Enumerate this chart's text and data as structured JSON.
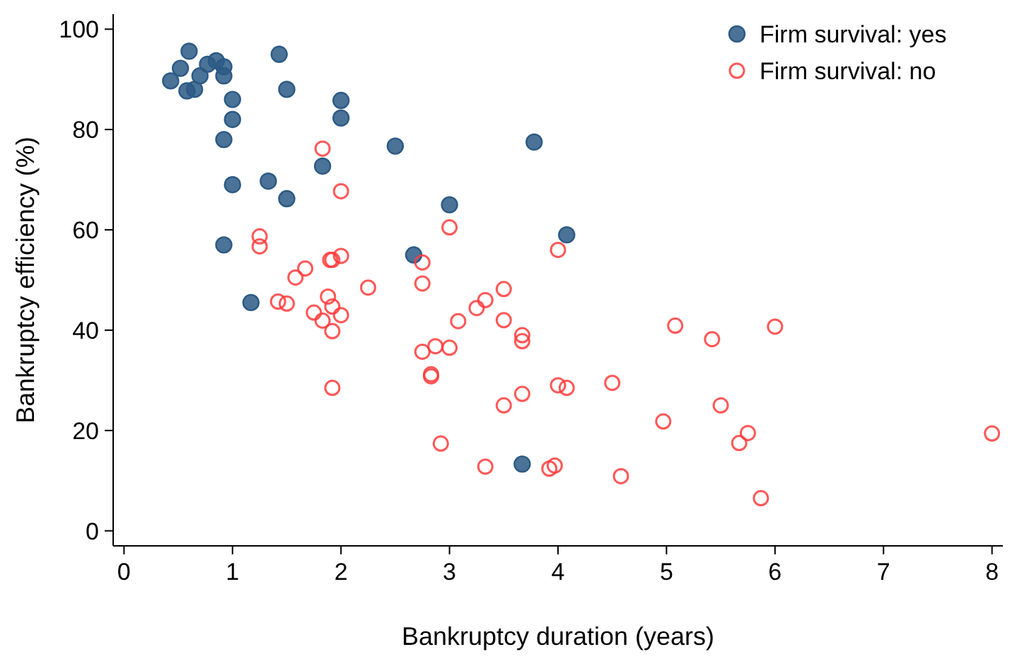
{
  "chart_data": {
    "type": "scatter",
    "xlabel": "Bankruptcy duration (years)",
    "ylabel": "Bankruptcy efficiency (%)",
    "xlim": [
      -0.1,
      8.1
    ],
    "ylim": [
      -3,
      103
    ],
    "xticks": [
      0,
      1,
      2,
      3,
      4,
      5,
      6,
      7,
      8
    ],
    "yticks": [
      0,
      20,
      40,
      60,
      80,
      100
    ],
    "grid": false,
    "legend": "top right",
    "series": [
      {
        "name": "Firm survival: yes",
        "color": "#2c5a85",
        "marker": "circle",
        "x": [
          0.43,
          0.52,
          0.58,
          0.6,
          0.65,
          0.7,
          0.77,
          0.85,
          0.92,
          0.92,
          0.92,
          0.92,
          1,
          1,
          1,
          1.17,
          1.33,
          1.43,
          1.5,
          1.5,
          1.83,
          2,
          2,
          2.5,
          2.67,
          3,
          3.67,
          3.78,
          4.08
        ],
        "values": [
          89.7,
          92.2,
          87.7,
          95.6,
          88,
          90.7,
          93,
          93.7,
          92.5,
          90.7,
          78,
          57,
          86,
          82,
          69,
          45.5,
          69.7,
          95,
          88,
          66.2,
          72.7,
          85.8,
          82.3,
          76.7,
          55,
          65,
          13.3,
          77.5,
          59
        ]
      },
      {
        "name": "Firm survival: no",
        "color": "#ff3b3b",
        "marker": "open-circle",
        "x": [
          1.25,
          1.25,
          1.42,
          1.5,
          1.58,
          1.67,
          1.75,
          1.83,
          1.83,
          1.88,
          1.9,
          1.92,
          1.92,
          1.92,
          1.92,
          2,
          2,
          2,
          2.25,
          2.75,
          2.75,
          2.75,
          2.83,
          2.83,
          2.87,
          2.92,
          3,
          3,
          3.08,
          3.25,
          3.33,
          3.33,
          3.5,
          3.5,
          3.5,
          3.67,
          3.67,
          3.67,
          3.92,
          3.97,
          4,
          4,
          4.08,
          4.5,
          4.58,
          4.97,
          5.08,
          5.42,
          5.5,
          5.67,
          5.75,
          5.87,
          6,
          8
        ],
        "values": [
          58.7,
          56.7,
          45.7,
          45.3,
          50.5,
          52.3,
          43.5,
          76.2,
          41.9,
          46.7,
          54,
          54,
          44.7,
          39.8,
          28.5,
          67.7,
          54.8,
          43,
          48.5,
          53.5,
          49.3,
          35.7,
          31.2,
          30.8,
          36.8,
          17.4,
          60.5,
          36.5,
          41.8,
          44.4,
          46,
          12.8,
          48.2,
          42,
          25,
          39,
          37.8,
          27.3,
          12.4,
          13,
          56,
          29,
          28.5,
          29.5,
          10.9,
          21.8,
          40.9,
          38.2,
          25,
          17.5,
          19.5,
          6.5,
          40.7,
          19.4
        ]
      }
    ]
  }
}
